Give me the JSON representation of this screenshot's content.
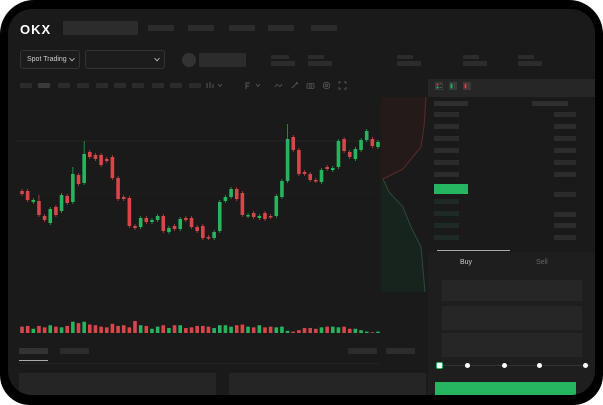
{
  "header": {
    "logo": "OKX"
  },
  "toolbar": {
    "market_selector": "Spot Trading"
  },
  "order_form": {
    "tabs": [
      {
        "label": "Buy",
        "active": true
      },
      {
        "label": "Sell",
        "active": false
      }
    ],
    "slider_level": 0,
    "slider_stops": 5
  },
  "colors": {
    "up": "#27b45e",
    "down": "#d9464a",
    "accent": "#26b661",
    "background": "#1a1a1a"
  },
  "order_book": {
    "view_icons": [
      "orderbook-both-icon",
      "orderbook-bids-icon",
      "orderbook-asks-icon"
    ]
  },
  "chart_data": {
    "type": "candlestick",
    "candles": [
      {
        "o": 118,
        "c": 115,
        "v": 9
      },
      {
        "o": 118,
        "c": 109,
        "v": 10
      },
      {
        "o": 107,
        "c": 109,
        "v": 6
      },
      {
        "o": 108,
        "c": 94,
        "h": 114,
        "v": 10
      },
      {
        "o": 93,
        "c": 89,
        "v": 8
      },
      {
        "o": 86,
        "c": 100,
        "v": 11
      },
      {
        "o": 102,
        "c": 94,
        "v": 9
      },
      {
        "o": 98,
        "c": 114,
        "v": 8
      },
      {
        "o": 113,
        "c": 106,
        "v": 10
      },
      {
        "o": 107,
        "c": 135,
        "h": 142,
        "v": 16
      },
      {
        "o": 134,
        "c": 125,
        "v": 14
      },
      {
        "o": 126,
        "c": 155,
        "h": 168,
        "v": 16
      },
      {
        "o": 157,
        "c": 152,
        "v": 12
      },
      {
        "o": 154,
        "c": 150,
        "v": 11
      },
      {
        "o": 154,
        "c": 144,
        "v": 9
      },
      {
        "o": 150,
        "c": 148,
        "v": 8
      },
      {
        "o": 152,
        "c": 131,
        "v": 13
      },
      {
        "o": 131,
        "c": 110,
        "v": 10
      },
      {
        "o": 112,
        "c": 110,
        "v": 11
      },
      {
        "o": 111,
        "c": 83,
        "v": 8
      },
      {
        "o": 83,
        "c": 81,
        "v": 17
      },
      {
        "o": 82,
        "c": 91,
        "v": 11
      },
      {
        "o": 91,
        "c": 87,
        "v": 10
      },
      {
        "o": 87,
        "c": 89,
        "v": 6
      },
      {
        "o": 89,
        "c": 93,
        "v": 9
      },
      {
        "o": 93,
        "c": 78,
        "v": 11
      },
      {
        "o": 77,
        "c": 81,
        "v": 7
      },
      {
        "o": 83,
        "c": 80,
        "v": 11
      },
      {
        "o": 80,
        "c": 90,
        "v": 11
      },
      {
        "o": 91,
        "c": 89,
        "v": 7
      },
      {
        "o": 91,
        "c": 82,
        "v": 8
      },
      {
        "o": 82,
        "c": 78,
        "v": 10
      },
      {
        "o": 83,
        "c": 71,
        "v": 10
      },
      {
        "o": 72,
        "c": 71,
        "v": 9
      },
      {
        "o": 71,
        "c": 77,
        "v": 7
      },
      {
        "o": 78,
        "c": 107,
        "v": 11
      },
      {
        "o": 108,
        "c": 112,
        "v": 11
      },
      {
        "o": 112,
        "c": 120,
        "v": 9
      },
      {
        "o": 120,
        "c": 110,
        "v": 11
      },
      {
        "o": 116,
        "c": 94,
        "v": 12
      },
      {
        "o": 93,
        "c": 94,
        "v": 9
      },
      {
        "o": 96,
        "c": 92,
        "v": 8
      },
      {
        "o": 91,
        "c": 93,
        "v": 11
      },
      {
        "o": 96,
        "c": 90,
        "v": 8
      },
      {
        "o": 93,
        "c": 92,
        "v": 9
      },
      {
        "o": 93,
        "c": 113,
        "v": 8
      },
      {
        "o": 112,
        "c": 128,
        "v": 9
      },
      {
        "o": 128,
        "c": 170,
        "h": 185,
        "v": 3
      },
      {
        "o": 172,
        "c": 159,
        "v": 2
      },
      {
        "o": 159,
        "c": 135,
        "v": 4
      },
      {
        "o": 137,
        "c": 135,
        "v": 7
      },
      {
        "o": 135,
        "c": 129,
        "v": 7
      },
      {
        "o": 129,
        "c": 128,
        "v": 6
      },
      {
        "o": 127,
        "c": 139,
        "v": 8
      },
      {
        "o": 142,
        "c": 140,
        "v": 9
      },
      {
        "o": 139,
        "c": 141,
        "v": 9
      },
      {
        "o": 142,
        "c": 168,
        "v": 8
      },
      {
        "o": 170,
        "c": 158,
        "v": 9
      },
      {
        "o": 157,
        "c": 152,
        "v": 6
      },
      {
        "o": 150,
        "c": 160,
        "v": 6
      },
      {
        "o": 159,
        "c": 169,
        "v": 4
      },
      {
        "o": 169,
        "c": 178,
        "v": 2
      },
      {
        "o": 170,
        "c": 163,
        "v": 1
      },
      {
        "o": 162,
        "c": 167,
        "v": 2
      }
    ]
  }
}
